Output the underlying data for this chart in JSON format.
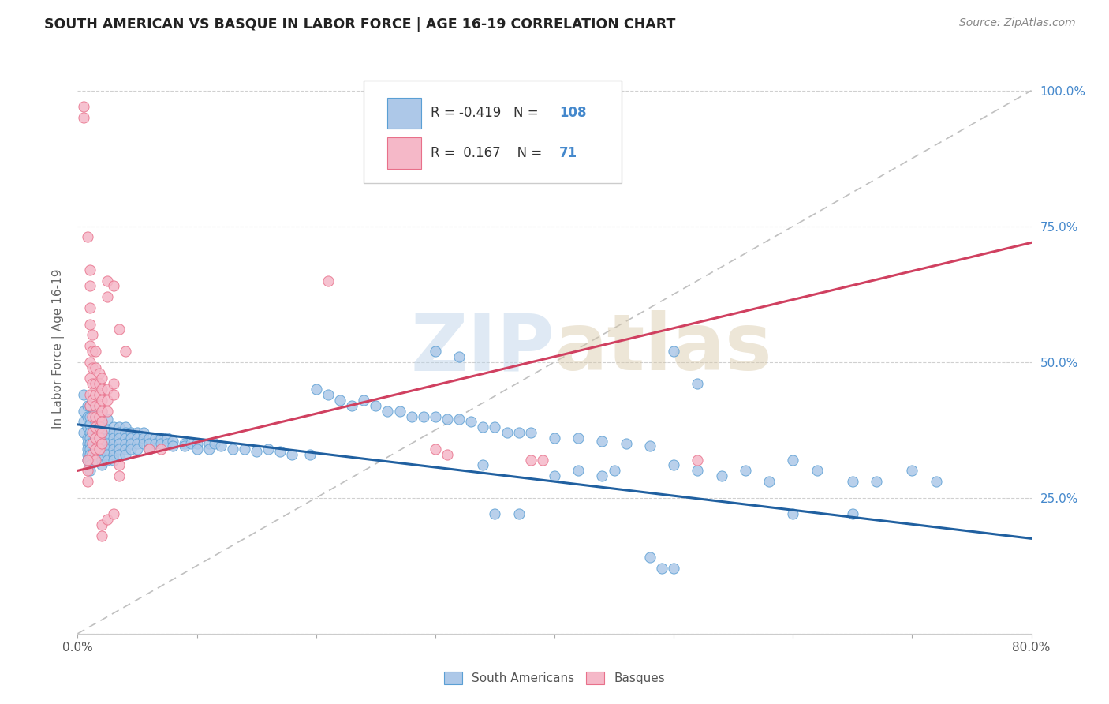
{
  "title": "SOUTH AMERICAN VS BASQUE IN LABOR FORCE | AGE 16-19 CORRELATION CHART",
  "source": "Source: ZipAtlas.com",
  "ylabel": "In Labor Force | Age 16-19",
  "xlim": [
    0.0,
    0.8
  ],
  "ylim": [
    0.0,
    1.05
  ],
  "xticks": [
    0.0,
    0.1,
    0.2,
    0.3,
    0.4,
    0.5,
    0.6,
    0.7,
    0.8
  ],
  "xticklabels": [
    "0.0%",
    "",
    "",
    "",
    "",
    "",
    "",
    "",
    "80.0%"
  ],
  "ytick_positions": [
    0.0,
    0.25,
    0.5,
    0.75,
    1.0
  ],
  "ytick_labels_right": [
    "",
    "25.0%",
    "50.0%",
    "75.0%",
    "100.0%"
  ],
  "blue_scatter_fill": "#adc8e8",
  "pink_scatter_fill": "#f5b8c8",
  "blue_edge_color": "#5a9fd4",
  "pink_edge_color": "#e8708a",
  "blue_line_color": "#2060a0",
  "pink_line_color": "#d04060",
  "dashed_line_color": "#c0c0c0",
  "R_blue": -0.419,
  "N_blue": 108,
  "R_pink": 0.167,
  "N_pink": 71,
  "watermark_zip": "ZIP",
  "watermark_atlas": "atlas",
  "blue_line_x": [
    0.0,
    0.8
  ],
  "blue_line_y": [
    0.385,
    0.175
  ],
  "pink_line_x": [
    0.0,
    0.8
  ],
  "pink_line_y": [
    0.3,
    0.72
  ],
  "blue_points": [
    [
      0.005,
      0.44
    ],
    [
      0.005,
      0.41
    ],
    [
      0.005,
      0.39
    ],
    [
      0.005,
      0.37
    ],
    [
      0.008,
      0.42
    ],
    [
      0.008,
      0.4
    ],
    [
      0.008,
      0.38
    ],
    [
      0.008,
      0.36
    ],
    [
      0.008,
      0.35
    ],
    [
      0.008,
      0.34
    ],
    [
      0.008,
      0.33
    ],
    [
      0.008,
      0.32
    ],
    [
      0.01,
      0.42
    ],
    [
      0.01,
      0.4
    ],
    [
      0.01,
      0.385
    ],
    [
      0.01,
      0.37
    ],
    [
      0.01,
      0.36
    ],
    [
      0.01,
      0.35
    ],
    [
      0.01,
      0.34
    ],
    [
      0.01,
      0.33
    ],
    [
      0.01,
      0.32
    ],
    [
      0.01,
      0.31
    ],
    [
      0.01,
      0.3
    ],
    [
      0.015,
      0.41
    ],
    [
      0.015,
      0.39
    ],
    [
      0.015,
      0.37
    ],
    [
      0.015,
      0.36
    ],
    [
      0.015,
      0.35
    ],
    [
      0.015,
      0.34
    ],
    [
      0.015,
      0.33
    ],
    [
      0.015,
      0.32
    ],
    [
      0.02,
      0.41
    ],
    [
      0.02,
      0.39
    ],
    [
      0.02,
      0.37
    ],
    [
      0.02,
      0.36
    ],
    [
      0.02,
      0.35
    ],
    [
      0.02,
      0.34
    ],
    [
      0.02,
      0.33
    ],
    [
      0.02,
      0.32
    ],
    [
      0.02,
      0.31
    ],
    [
      0.025,
      0.395
    ],
    [
      0.025,
      0.375
    ],
    [
      0.025,
      0.36
    ],
    [
      0.025,
      0.35
    ],
    [
      0.025,
      0.34
    ],
    [
      0.025,
      0.33
    ],
    [
      0.025,
      0.32
    ],
    [
      0.03,
      0.38
    ],
    [
      0.03,
      0.37
    ],
    [
      0.03,
      0.36
    ],
    [
      0.03,
      0.35
    ],
    [
      0.03,
      0.34
    ],
    [
      0.03,
      0.33
    ],
    [
      0.03,
      0.32
    ],
    [
      0.035,
      0.38
    ],
    [
      0.035,
      0.37
    ],
    [
      0.035,
      0.36
    ],
    [
      0.035,
      0.35
    ],
    [
      0.035,
      0.34
    ],
    [
      0.035,
      0.33
    ],
    [
      0.04,
      0.38
    ],
    [
      0.04,
      0.37
    ],
    [
      0.04,
      0.36
    ],
    [
      0.04,
      0.35
    ],
    [
      0.04,
      0.34
    ],
    [
      0.04,
      0.33
    ],
    [
      0.045,
      0.37
    ],
    [
      0.045,
      0.36
    ],
    [
      0.045,
      0.35
    ],
    [
      0.045,
      0.34
    ],
    [
      0.05,
      0.37
    ],
    [
      0.05,
      0.36
    ],
    [
      0.05,
      0.35
    ],
    [
      0.05,
      0.34
    ],
    [
      0.055,
      0.37
    ],
    [
      0.055,
      0.36
    ],
    [
      0.055,
      0.35
    ],
    [
      0.06,
      0.36
    ],
    [
      0.06,
      0.35
    ],
    [
      0.06,
      0.34
    ],
    [
      0.065,
      0.36
    ],
    [
      0.065,
      0.35
    ],
    [
      0.07,
      0.36
    ],
    [
      0.07,
      0.35
    ],
    [
      0.075,
      0.36
    ],
    [
      0.075,
      0.35
    ],
    [
      0.08,
      0.355
    ],
    [
      0.08,
      0.345
    ],
    [
      0.09,
      0.35
    ],
    [
      0.09,
      0.345
    ],
    [
      0.095,
      0.35
    ],
    [
      0.1,
      0.35
    ],
    [
      0.1,
      0.34
    ],
    [
      0.11,
      0.35
    ],
    [
      0.11,
      0.34
    ],
    [
      0.115,
      0.35
    ],
    [
      0.12,
      0.345
    ],
    [
      0.13,
      0.34
    ],
    [
      0.14,
      0.34
    ],
    [
      0.15,
      0.335
    ],
    [
      0.16,
      0.34
    ],
    [
      0.17,
      0.335
    ],
    [
      0.18,
      0.33
    ],
    [
      0.195,
      0.33
    ],
    [
      0.2,
      0.45
    ],
    [
      0.21,
      0.44
    ],
    [
      0.22,
      0.43
    ],
    [
      0.23,
      0.42
    ],
    [
      0.24,
      0.43
    ],
    [
      0.25,
      0.42
    ],
    [
      0.26,
      0.41
    ],
    [
      0.27,
      0.41
    ],
    [
      0.28,
      0.4
    ],
    [
      0.29,
      0.4
    ],
    [
      0.3,
      0.4
    ],
    [
      0.31,
      0.395
    ],
    [
      0.32,
      0.395
    ],
    [
      0.33,
      0.39
    ],
    [
      0.34,
      0.38
    ],
    [
      0.35,
      0.38
    ],
    [
      0.36,
      0.37
    ],
    [
      0.37,
      0.37
    ],
    [
      0.38,
      0.37
    ],
    [
      0.4,
      0.36
    ],
    [
      0.42,
      0.36
    ],
    [
      0.44,
      0.355
    ],
    [
      0.46,
      0.35
    ],
    [
      0.48,
      0.345
    ],
    [
      0.3,
      0.52
    ],
    [
      0.32,
      0.51
    ],
    [
      0.34,
      0.31
    ],
    [
      0.35,
      0.22
    ],
    [
      0.37,
      0.22
    ],
    [
      0.4,
      0.29
    ],
    [
      0.42,
      0.3
    ],
    [
      0.44,
      0.29
    ],
    [
      0.45,
      0.3
    ],
    [
      0.48,
      0.14
    ],
    [
      0.49,
      0.12
    ],
    [
      0.5,
      0.12
    ],
    [
      0.5,
      0.31
    ],
    [
      0.52,
      0.3
    ],
    [
      0.54,
      0.29
    ],
    [
      0.56,
      0.3
    ],
    [
      0.58,
      0.28
    ],
    [
      0.6,
      0.32
    ],
    [
      0.62,
      0.3
    ],
    [
      0.65,
      0.28
    ],
    [
      0.67,
      0.28
    ],
    [
      0.5,
      0.52
    ],
    [
      0.52,
      0.46
    ],
    [
      0.6,
      0.22
    ],
    [
      0.65,
      0.22
    ],
    [
      0.7,
      0.3
    ],
    [
      0.72,
      0.28
    ]
  ],
  "pink_points": [
    [
      0.005,
      0.97
    ],
    [
      0.005,
      0.95
    ],
    [
      0.008,
      0.73
    ],
    [
      0.01,
      0.42
    ],
    [
      0.01,
      0.44
    ],
    [
      0.01,
      0.47
    ],
    [
      0.01,
      0.5
    ],
    [
      0.01,
      0.53
    ],
    [
      0.01,
      0.57
    ],
    [
      0.01,
      0.6
    ],
    [
      0.01,
      0.64
    ],
    [
      0.01,
      0.67
    ],
    [
      0.012,
      0.55
    ],
    [
      0.012,
      0.52
    ],
    [
      0.012,
      0.49
    ],
    [
      0.012,
      0.46
    ],
    [
      0.012,
      0.43
    ],
    [
      0.012,
      0.4
    ],
    [
      0.012,
      0.37
    ],
    [
      0.012,
      0.35
    ],
    [
      0.012,
      0.33
    ],
    [
      0.015,
      0.52
    ],
    [
      0.015,
      0.49
    ],
    [
      0.015,
      0.46
    ],
    [
      0.015,
      0.44
    ],
    [
      0.015,
      0.42
    ],
    [
      0.015,
      0.4
    ],
    [
      0.015,
      0.38
    ],
    [
      0.015,
      0.36
    ],
    [
      0.015,
      0.34
    ],
    [
      0.015,
      0.32
    ],
    [
      0.018,
      0.48
    ],
    [
      0.018,
      0.46
    ],
    [
      0.018,
      0.44
    ],
    [
      0.018,
      0.42
    ],
    [
      0.018,
      0.4
    ],
    [
      0.018,
      0.38
    ],
    [
      0.018,
      0.36
    ],
    [
      0.018,
      0.34
    ],
    [
      0.02,
      0.47
    ],
    [
      0.02,
      0.45
    ],
    [
      0.02,
      0.43
    ],
    [
      0.02,
      0.41
    ],
    [
      0.02,
      0.39
    ],
    [
      0.02,
      0.37
    ],
    [
      0.02,
      0.35
    ],
    [
      0.025,
      0.65
    ],
    [
      0.025,
      0.62
    ],
    [
      0.025,
      0.45
    ],
    [
      0.025,
      0.43
    ],
    [
      0.025,
      0.41
    ],
    [
      0.03,
      0.64
    ],
    [
      0.03,
      0.46
    ],
    [
      0.03,
      0.44
    ],
    [
      0.035,
      0.56
    ],
    [
      0.04,
      0.52
    ],
    [
      0.008,
      0.32
    ],
    [
      0.008,
      0.3
    ],
    [
      0.008,
      0.28
    ],
    [
      0.02,
      0.2
    ],
    [
      0.02,
      0.18
    ],
    [
      0.025,
      0.21
    ],
    [
      0.03,
      0.22
    ],
    [
      0.035,
      0.31
    ],
    [
      0.035,
      0.29
    ],
    [
      0.06,
      0.34
    ],
    [
      0.07,
      0.34
    ],
    [
      0.21,
      0.65
    ],
    [
      0.3,
      0.34
    ],
    [
      0.31,
      0.33
    ],
    [
      0.38,
      0.32
    ],
    [
      0.39,
      0.32
    ],
    [
      0.52,
      0.32
    ]
  ]
}
